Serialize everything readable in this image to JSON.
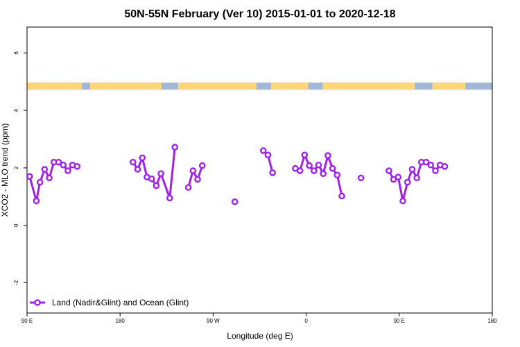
{
  "chart_data": {
    "type": "line",
    "title": "50N-55N February (Ver 10)   2015-01-01 to 2020-12-18",
    "xlabel": "Longitude (deg E)",
    "ylabel": "XCO2 - MLO trend (ppm)",
    "xlim": [
      90,
      540
    ],
    "ylim": [
      -3.05,
      6.9
    ],
    "x_ticks": [
      {
        "value": 90,
        "label": "90 E"
      },
      {
        "value": 180,
        "label": "180"
      },
      {
        "value": 270,
        "label": "90 W"
      },
      {
        "value": 360,
        "label": "0"
      },
      {
        "value": 450,
        "label": "90 E"
      },
      {
        "value": 540,
        "label": "180"
      }
    ],
    "y_ticks": [
      {
        "value": -2,
        "label": "-2"
      },
      {
        "value": 0,
        "label": "0"
      },
      {
        "value": 2,
        "label": "2"
      },
      {
        "value": 4,
        "label": "4"
      },
      {
        "value": 6,
        "label": "6"
      }
    ],
    "land_ocean_band": {
      "y_range": [
        4.72,
        4.97
      ],
      "ocean_color": "#a3b8d8",
      "land_color": "#fcd77a",
      "land_segments": [
        [
          90,
          143
        ],
        [
          151,
          220
        ],
        [
          236,
          312
        ],
        [
          326,
          362
        ],
        [
          376,
          465
        ],
        [
          482,
          514
        ]
      ]
    },
    "series": [
      {
        "name": "Land (Nadir&Glint) and Ocean (Glint)",
        "color": "#a020f0",
        "segments": [
          [
            [
              92.5,
              1.7
            ],
            [
              99,
              0.85
            ],
            [
              102.5,
              1.5
            ],
            [
              107,
              1.95
            ],
            [
              111.5,
              1.65
            ],
            [
              116,
              2.2
            ],
            [
              120.5,
              2.2
            ],
            [
              125,
              2.1
            ],
            [
              129.5,
              1.9
            ],
            [
              134,
              2.1
            ],
            [
              138.5,
              2.05
            ]
          ],
          [
            [
              192.5,
              2.2
            ],
            [
              197,
              1.95
            ],
            [
              201.5,
              2.35
            ],
            [
              206,
              1.68
            ],
            [
              210.5,
              1.62
            ],
            [
              215,
              1.38
            ],
            [
              219.5,
              1.8
            ],
            [
              228,
              0.95
            ],
            [
              233,
              2.72
            ]
          ],
          [
            [
              246,
              1.32
            ],
            [
              250.5,
              1.9
            ],
            [
              255,
              1.6
            ],
            [
              259.5,
              2.08
            ]
          ],
          [
            [
              291,
              0.82
            ]
          ],
          [
            [
              318.5,
              2.6
            ],
            [
              323,
              2.45
            ],
            [
              327.5,
              1.83
            ]
          ],
          [
            [
              349.5,
              1.98
            ],
            [
              354,
              1.9
            ],
            [
              358.5,
              2.45
            ],
            [
              363,
              2.08
            ],
            [
              367.5,
              1.9
            ],
            [
              372,
              2.1
            ],
            [
              376.5,
              1.8
            ],
            [
              381,
              2.43
            ],
            [
              385.5,
              1.98
            ],
            [
              390,
              1.75
            ],
            [
              394.5,
              1.02
            ]
          ],
          [
            [
              413,
              1.65
            ]
          ],
          [
            [
              440,
              1.9
            ],
            [
              444.5,
              1.6
            ],
            [
              449,
              1.68
            ],
            [
              453.5,
              0.85
            ],
            [
              458,
              1.5
            ],
            [
              462.5,
              1.95
            ],
            [
              467,
              1.65
            ],
            [
              471.5,
              2.2
            ],
            [
              476,
              2.2
            ],
            [
              480.5,
              2.1
            ],
            [
              485,
              1.9
            ],
            [
              489.5,
              2.1
            ],
            [
              494,
              2.05
            ]
          ]
        ]
      }
    ],
    "legend_position": "bottom-left",
    "grid": false
  }
}
